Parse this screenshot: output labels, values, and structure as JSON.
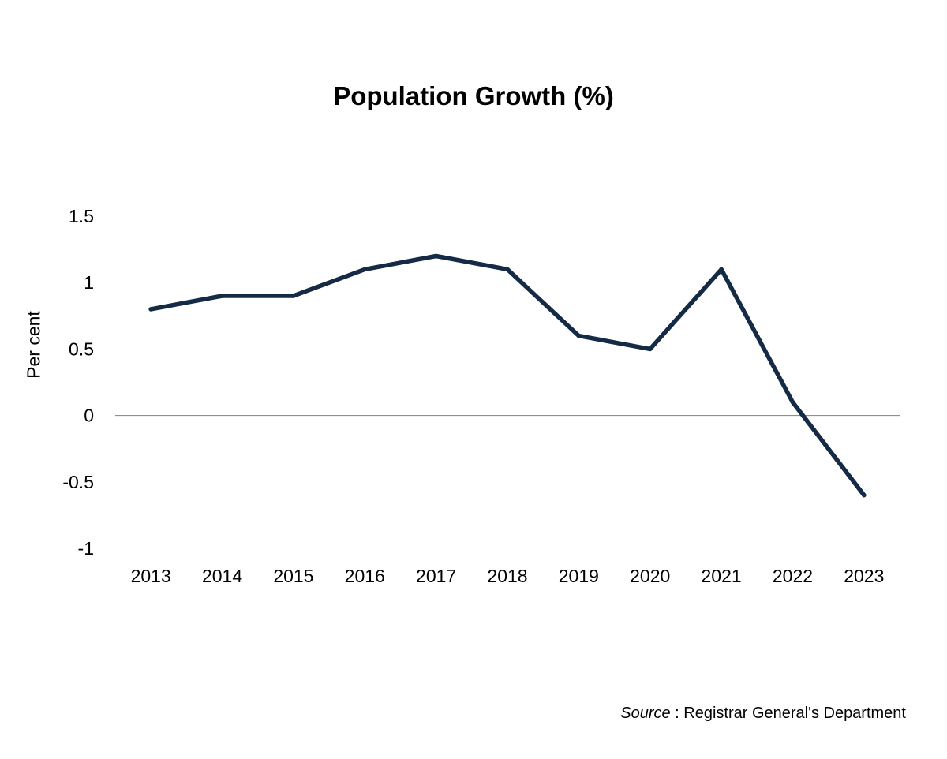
{
  "chart_data": {
    "type": "line",
    "title": "Population Growth (%)",
    "xlabel": "",
    "ylabel": "Per cent",
    "categories": [
      "2013",
      "2014",
      "2015",
      "2016",
      "2017",
      "2018",
      "2019",
      "2020",
      "2021",
      "2022",
      "2023"
    ],
    "series": [
      {
        "values": [
          0.8,
          0.9,
          0.9,
          1.1,
          1.2,
          1.1,
          0.6,
          0.5,
          1.1,
          0.1,
          -0.6
        ]
      }
    ],
    "ylim": [
      -1,
      1.5
    ],
    "yticks": [
      "1.5",
      "1",
      "0.5",
      "0",
      "-0.5",
      "-1"
    ],
    "zero_line": true,
    "grid": false,
    "legend": "none",
    "colors": {
      "line": "#142a45",
      "zero_line": "#7f7f7f"
    }
  },
  "source": {
    "label": "Source",
    "text": " : Registrar General's Department"
  }
}
